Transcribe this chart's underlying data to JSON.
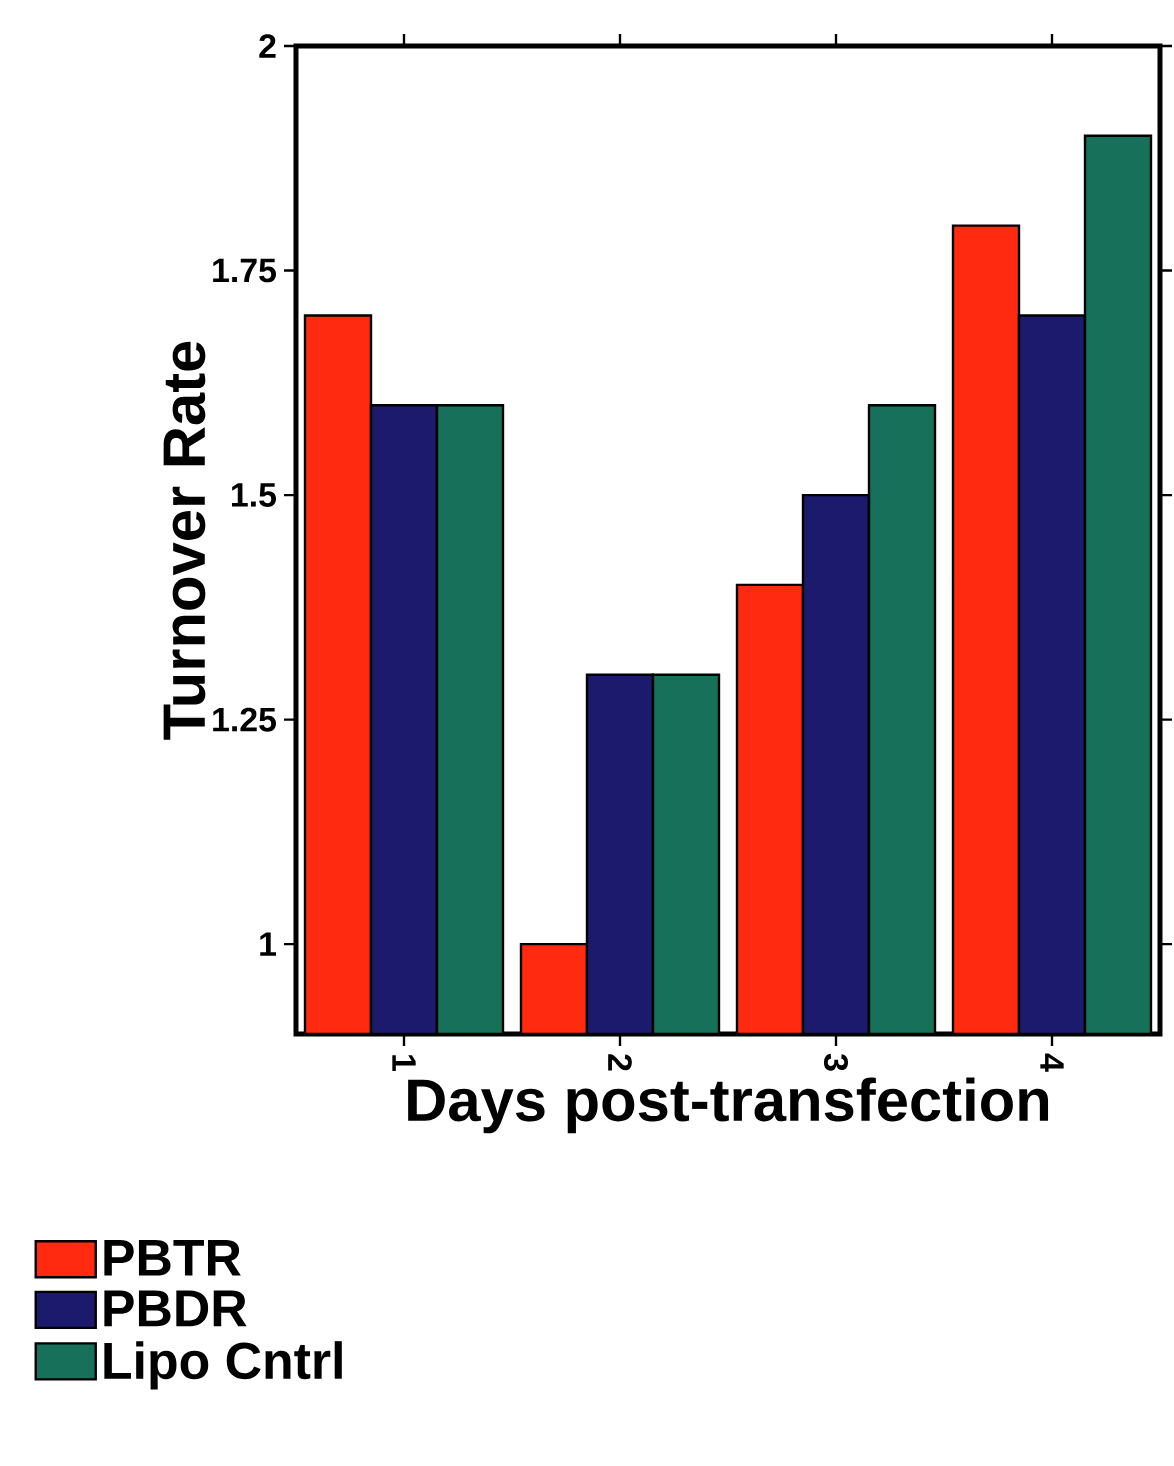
{
  "chart_data": {
    "type": "bar",
    "xlabel": "Days post-transfection",
    "ylabel": "Turnover Rate",
    "categories": [
      "1",
      "2",
      "3",
      "4"
    ],
    "series": [
      {
        "name": "PBTR",
        "color": "#ff2a10",
        "values": [
          1.7,
          1.0,
          1.4,
          1.8
        ]
      },
      {
        "name": "PBDR",
        "color": "#1c1a6c",
        "values": [
          1.6,
          1.3,
          1.5,
          1.7
        ]
      },
      {
        "name": "Lipo Cntrl",
        "color": "#17705a",
        "values": [
          1.6,
          1.3,
          1.6,
          1.9
        ]
      }
    ],
    "ylim": [
      0.9,
      2
    ],
    "yticks": [
      1,
      1.25,
      1.5,
      1.75,
      2
    ],
    "legend": "bottom left"
  }
}
